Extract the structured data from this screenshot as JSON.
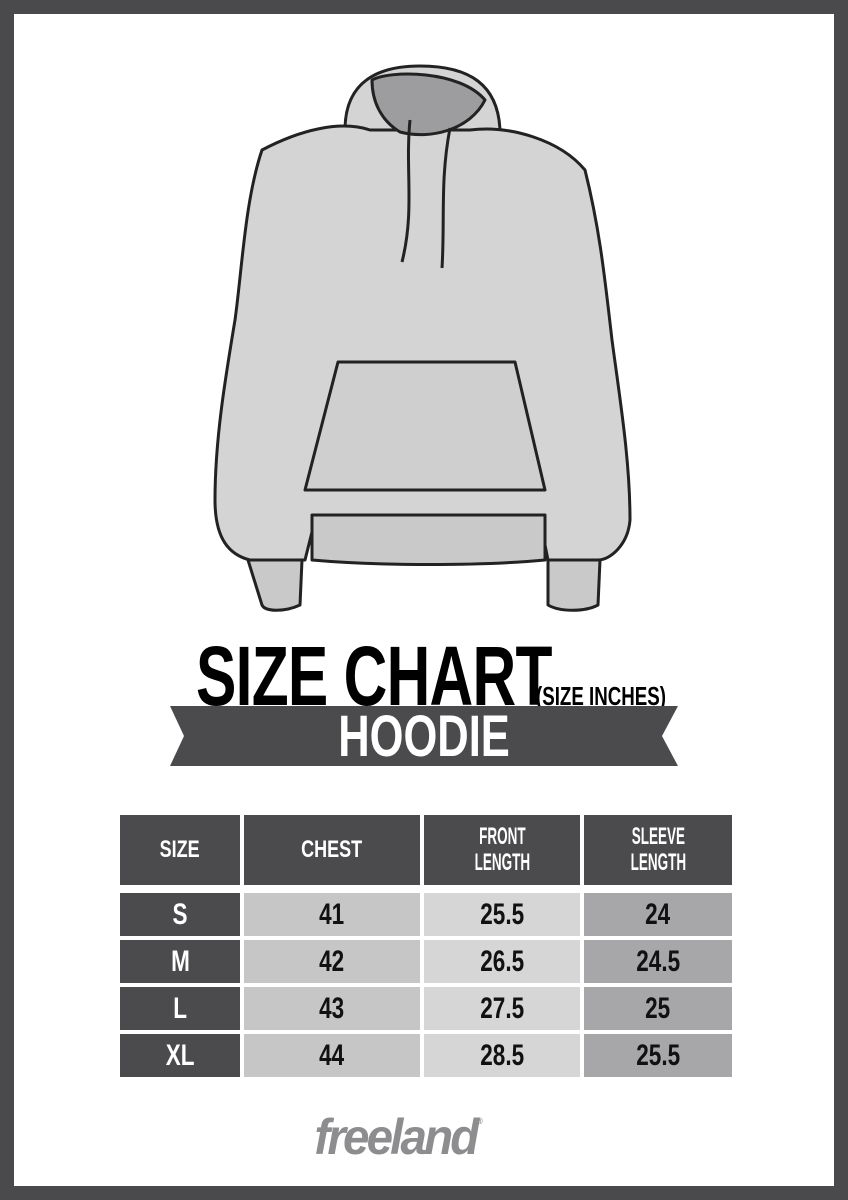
{
  "title": "SIZE CHART",
  "unit_note": "(SIZE INCHES)",
  "product": "HOODIE",
  "table": {
    "headers": [
      [
        "SIZE"
      ],
      [
        "CHEST"
      ],
      [
        "FRONT",
        "LENGTH"
      ],
      [
        "SLEEVE",
        "LENGTH"
      ]
    ],
    "rows": [
      {
        "size": "S",
        "chest": "41",
        "front_length": "25.5",
        "sleeve_length": "24"
      },
      {
        "size": "M",
        "chest": "42",
        "front_length": "26.5",
        "sleeve_length": "24.5"
      },
      {
        "size": "L",
        "chest": "43",
        "front_length": "27.5",
        "sleeve_length": "25"
      },
      {
        "size": "XL",
        "chest": "44",
        "front_length": "28.5",
        "sleeve_length": "25.5"
      }
    ]
  },
  "brand": {
    "name": "freeland",
    "mark": "®"
  },
  "colors": {
    "frame": "#4a4a4c",
    "header": "#4b4b4d",
    "chest_col": "#c6c6c7",
    "front_col": "#d6d6d7",
    "sleeve_col": "#a7a7a9",
    "logo": "#8d8d8f"
  }
}
